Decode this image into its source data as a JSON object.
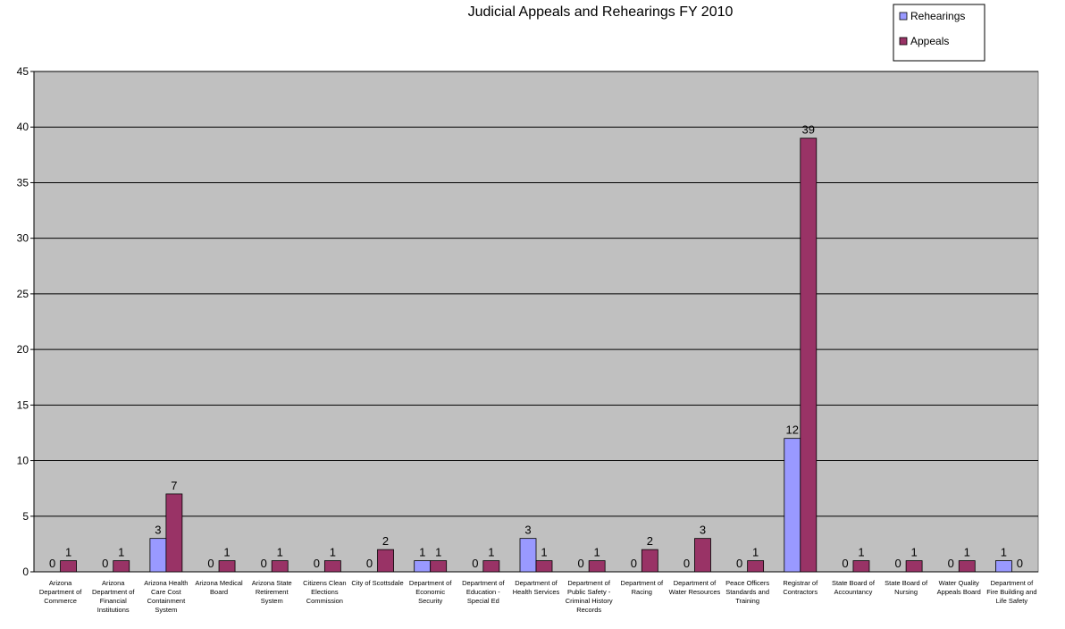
{
  "chart_data": {
    "type": "bar",
    "title": "Judicial Appeals and Rehearings FY 2010",
    "categories": [
      "Arizona Department of Commerce",
      "Arizona Department of Financial Institutions",
      "Arizona Health Care Cost Containment System",
      "Arizona Medical Board",
      "Arizona State Retirement System",
      "Citizens Clean Elections Commission",
      "City of Scottsdale",
      "Department of Economic Security",
      "Department of Education - Special Ed",
      "Department of Health Services",
      "Department of Public Safety - Criminal History Records",
      "Department of Racing",
      "Department of Water Resources",
      "Peace Officers Standards and Training",
      "Registrar of Contractors",
      "State Board of Accountancy",
      "State Board of Nursing",
      "Water Quality Appeals Board",
      "Department of Fire Building and Life Safety"
    ],
    "series": [
      {
        "name": "Rehearings",
        "color": "#9999ff",
        "values": [
          0,
          0,
          3,
          0,
          0,
          0,
          0,
          1,
          0,
          3,
          0,
          0,
          0,
          0,
          12,
          0,
          0,
          0,
          1
        ]
      },
      {
        "name": "Appeals",
        "color": "#993366",
        "values": [
          1,
          1,
          7,
          1,
          1,
          1,
          2,
          1,
          1,
          1,
          1,
          2,
          3,
          1,
          39,
          1,
          1,
          1,
          0
        ]
      }
    ],
    "ylim": [
      0,
      45
    ],
    "yticks": [
      0,
      5,
      10,
      15,
      20,
      25,
      30,
      35,
      40,
      45
    ],
    "grid": true,
    "legend": "top-right"
  }
}
